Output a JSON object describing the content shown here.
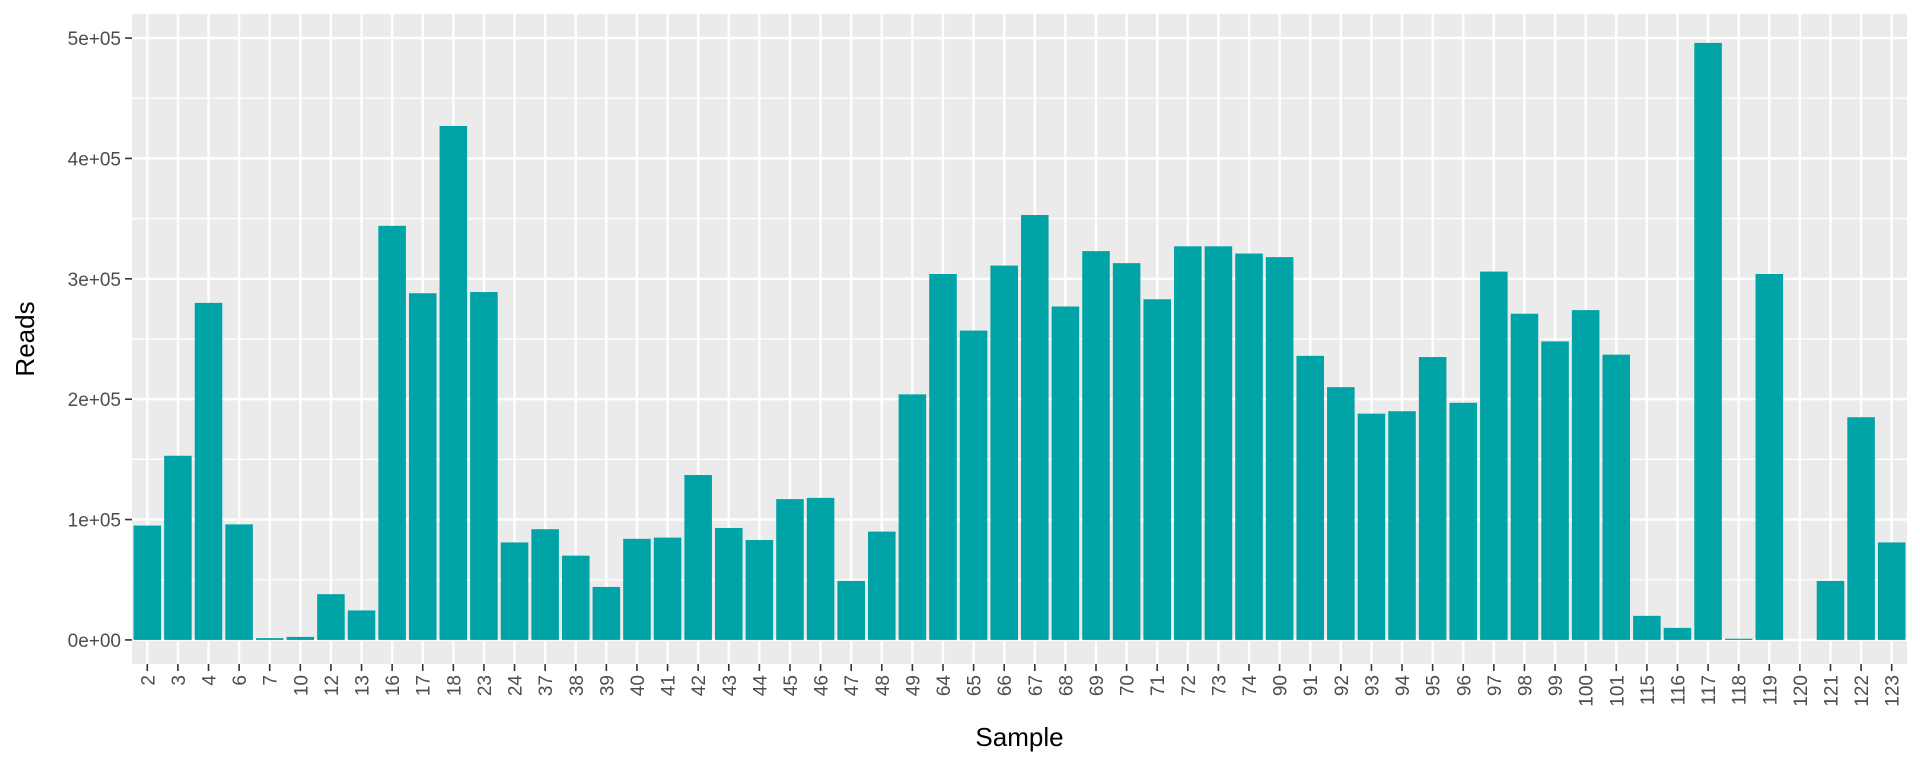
{
  "chart_data": {
    "type": "bar",
    "xlabel": "Sample",
    "ylabel": "Reads",
    "ylim": [
      -20000,
      520000
    ],
    "yticks": [
      0,
      100000,
      200000,
      300000,
      400000,
      500000
    ],
    "ytick_labels": [
      "0e+00",
      "1e+05",
      "2e+05",
      "3e+05",
      "4e+05",
      "5e+05"
    ],
    "categories": [
      "2",
      "3",
      "4",
      "6",
      "7",
      "10",
      "12",
      "13",
      "16",
      "17",
      "18",
      "23",
      "24",
      "37",
      "38",
      "39",
      "40",
      "41",
      "42",
      "43",
      "44",
      "45",
      "46",
      "47",
      "48",
      "49",
      "64",
      "65",
      "66",
      "67",
      "68",
      "69",
      "70",
      "71",
      "72",
      "73",
      "74",
      "90",
      "91",
      "92",
      "93",
      "94",
      "95",
      "96",
      "97",
      "98",
      "99",
      "100",
      "101",
      "115",
      "116",
      "117",
      "118",
      "119",
      "120",
      "121",
      "122",
      "123"
    ],
    "values": [
      95000,
      153000,
      280000,
      96000,
      1500,
      2500,
      38000,
      24500,
      344000,
      288000,
      427000,
      289000,
      81000,
      92000,
      70000,
      44000,
      84000,
      85000,
      137000,
      93000,
      83000,
      117000,
      118000,
      49000,
      90000,
      204000,
      304000,
      257000,
      311000,
      353000,
      277000,
      323000,
      313000,
      283000,
      327000,
      327000,
      321000,
      318000,
      236000,
      210000,
      188000,
      190000,
      235000,
      197000,
      306000,
      271000,
      248000,
      274000,
      237000,
      20000,
      10000,
      496000,
      1000,
      304000,
      0,
      49000,
      185000,
      81000
    ],
    "grid": true,
    "legend": "none",
    "colors": {
      "bar": "#00A3A6",
      "panel": "#EBEBEB",
      "grid": "#FFFFFF",
      "tick_text": "#4D4D4D",
      "title_text": "#000000"
    }
  }
}
